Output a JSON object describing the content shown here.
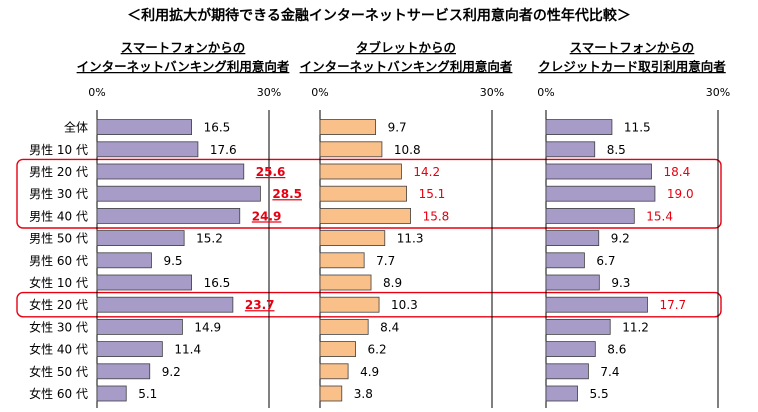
{
  "title": "＜利用拡大が期待できる金融インターネットサービス利用意向者の性年代比較＞",
  "row_labels": [
    "全体",
    "男性 10 代",
    "男性 20 代",
    "男性 30 代",
    "男性 40 代",
    "男性 50 代",
    "男性 60 代",
    "女性 10 代",
    "女性 20 代",
    "女性 30 代",
    "女性 40 代",
    "女性 50 代",
    "女性 60 代"
  ],
  "highlight_rows": [
    [
      2,
      4
    ],
    [
      8,
      8
    ]
  ],
  "colors": {
    "purple": "#a79bc8",
    "orange": "#f9c08a",
    "highlight": "#e60012",
    "border": "#404040"
  },
  "chart_data": [
    {
      "type": "bar",
      "title_line1": "スマートフォンからの",
      "title_line2": "インターネットバンキング利用意向者",
      "axis_min_label": "0%",
      "axis_max_label": "30%",
      "xlim": [
        0,
        30
      ],
      "color": "purple",
      "values": [
        16.5,
        17.6,
        25.6,
        28.5,
        24.9,
        15.2,
        9.5,
        16.5,
        23.7,
        14.9,
        11.4,
        9.2,
        5.1
      ],
      "value_labels": [
        "16.5",
        "17.6",
        "25.6",
        "28.5",
        "24.9",
        "15.2",
        "9.5",
        "16.5",
        "23.7",
        "14.9",
        "11.4",
        "9.2",
        "5.1"
      ],
      "emphasized": [
        false,
        false,
        true,
        true,
        true,
        false,
        false,
        false,
        true,
        false,
        false,
        false,
        false
      ]
    },
    {
      "type": "bar",
      "title_line1": "タブレットからの",
      "title_line2": "インターネットバンキング利用意向者",
      "axis_min_label": "0%",
      "axis_max_label": "30%",
      "xlim": [
        0,
        30
      ],
      "color": "orange",
      "values": [
        9.7,
        10.8,
        14.2,
        15.1,
        15.8,
        11.3,
        7.7,
        8.9,
        10.3,
        8.4,
        6.2,
        4.9,
        3.8
      ],
      "value_labels": [
        "9.7",
        "10.8",
        "14.2",
        "15.1",
        "15.8",
        "11.3",
        "7.7",
        "8.9",
        "10.3",
        "8.4",
        "6.2",
        "4.9",
        "3.8"
      ],
      "emphasized": [
        false,
        false,
        true,
        true,
        true,
        false,
        false,
        false,
        false,
        false,
        false,
        false,
        false
      ]
    },
    {
      "type": "bar",
      "title_line1": "スマートフォンからの",
      "title_line2": "クレジットカード取引利用意向者",
      "axis_min_label": "0%",
      "axis_max_label": "30%",
      "xlim": [
        0,
        30
      ],
      "color": "purple",
      "values": [
        11.5,
        8.5,
        18.4,
        19.0,
        15.4,
        9.2,
        6.7,
        9.3,
        17.7,
        11.2,
        8.6,
        7.4,
        5.5
      ],
      "value_labels": [
        "11.5",
        "8.5",
        "18.4",
        "19.0",
        "15.4",
        "9.2",
        "6.7",
        "9.3",
        "17.7",
        "11.2",
        "8.6",
        "7.4",
        "5.5"
      ],
      "emphasized": [
        false,
        false,
        true,
        true,
        true,
        false,
        false,
        false,
        true,
        false,
        false,
        false,
        false
      ]
    }
  ]
}
